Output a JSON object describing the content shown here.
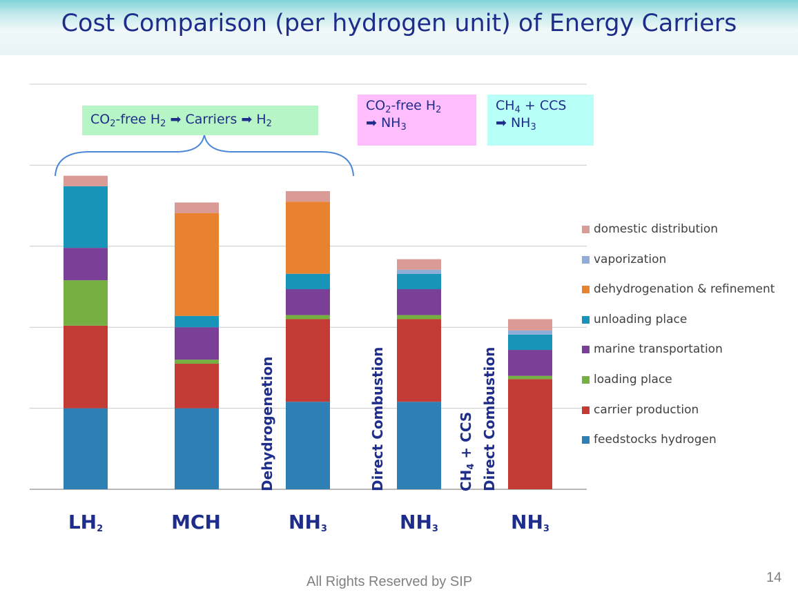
{
  "slide": {
    "title": "Cost Comparison (per hydrogen unit) of Energy Carriers",
    "footer": "All Rights Reserved by SIP",
    "page_number": "14"
  },
  "annotations": {
    "group_box": {
      "pre": "CO",
      "sub1": "2",
      "mid": "-free H",
      "sub2": "2",
      "arrow1": "➡",
      "carriers": "Carriers",
      "arrow2": "➡",
      "end": "H",
      "sub3": "2",
      "color": "#b8f5c6"
    },
    "pink_box": {
      "line1_pre": "CO",
      "line1_sub": "2",
      "line1_post": "-free H",
      "line1_sub2": "2",
      "arrow": "➡",
      "line2": "NH",
      "line2_sub": "3",
      "color": "#ffbdfd"
    },
    "cyan_box": {
      "line1_pre": "CH",
      "line1_sub": "4",
      "line1_post": " + CCS",
      "arrow": "➡",
      "line2": "NH",
      "line2_sub": "3",
      "color": "#b8fff8"
    },
    "bar_labels": {
      "dehydrogenation": "Dehydrogenetion",
      "direct_combustion": "Direct Combustion",
      "ccs_line1_pre": "CH",
      "ccs_line1_sub": "4",
      "ccs_line1_post": " + CCS",
      "ccs_line2": "Direct Combustion"
    }
  },
  "chart_data": {
    "type": "bar",
    "stacked": true,
    "title": "Cost Comparison (per hydrogen unit) of Energy Carriers",
    "xlabel": "",
    "ylabel": "",
    "ylim": [
      0,
      5
    ],
    "grid": true,
    "y_tick_labels_shown": false,
    "legend_position": "right",
    "categories": [
      {
        "base": "LH",
        "sub": "2"
      },
      {
        "base": "MCH",
        "sub": ""
      },
      {
        "base": "NH",
        "sub": "3"
      },
      {
        "base": "NH",
        "sub": "3"
      },
      {
        "base": "NH",
        "sub": "3"
      }
    ],
    "series": [
      {
        "name": "feedstocks hydrogen",
        "color": "#2e7fb4",
        "values": [
          1.0,
          1.0,
          1.08,
          1.08,
          0
        ]
      },
      {
        "name": "carrier production",
        "color": "#c23b35",
        "values": [
          1.02,
          0.55,
          1.02,
          1.02,
          1.36
        ]
      },
      {
        "name": "loading place",
        "color": "#76b043",
        "values": [
          0.56,
          0.05,
          0.05,
          0.05,
          0.04
        ]
      },
      {
        "name": "marine transportation",
        "color": "#7a3f96",
        "values": [
          0.4,
          0.4,
          0.32,
          0.32,
          0.32
        ]
      },
      {
        "name": "unloading place",
        "color": "#1894b8",
        "values": [
          0.76,
          0.14,
          0.19,
          0.19,
          0.19
        ]
      },
      {
        "name": "dehydrogenation & refinement",
        "color": "#e8822e",
        "values": [
          0,
          1.27,
          0.89,
          0,
          0
        ]
      },
      {
        "name": "vaporization",
        "color": "#92acd8",
        "values": [
          0,
          0,
          0,
          0.05,
          0.05
        ]
      },
      {
        "name": "domestic distribution",
        "color": "#da9b97",
        "values": [
          0.13,
          0.13,
          0.13,
          0.13,
          0.14
        ]
      }
    ],
    "legend_order": [
      "domestic distribution",
      "vaporization",
      "dehydrogenation & refinement",
      "unloading place",
      "marine transportation",
      "loading place",
      "carrier production",
      "feedstocks hydrogen"
    ]
  }
}
